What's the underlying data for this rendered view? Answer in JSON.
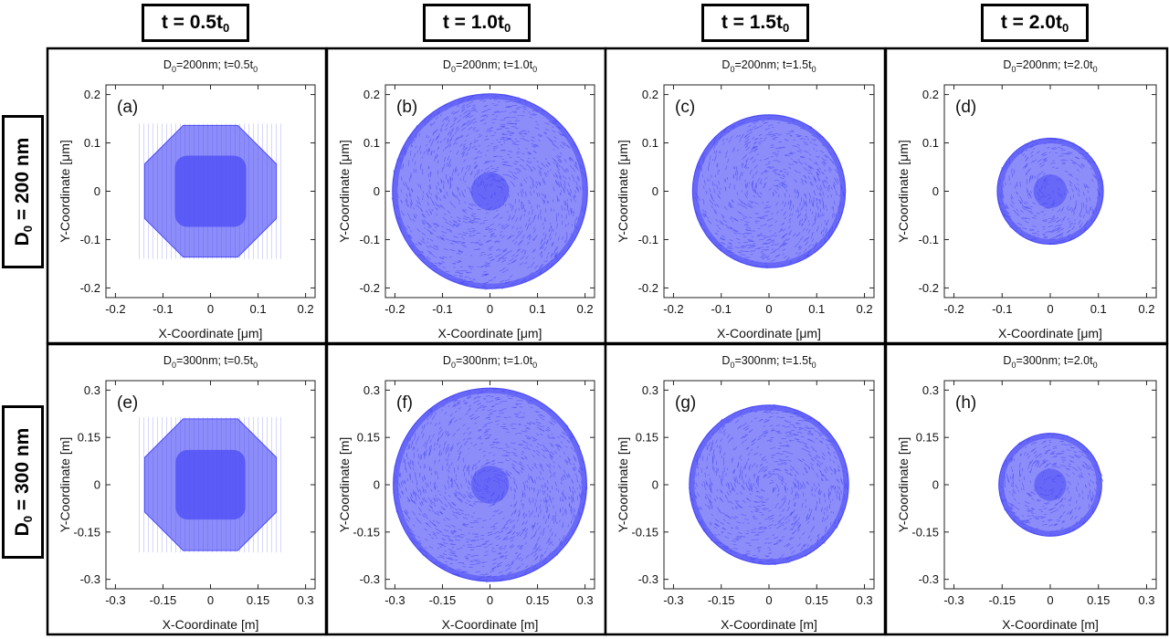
{
  "column_headers": [
    {
      "base": "t = ",
      "num": "0.5t",
      "sub": "0"
    },
    {
      "base": "t = ",
      "num": "1.0t",
      "sub": "0"
    },
    {
      "base": "t = ",
      "num": "1.5t",
      "sub": "0"
    },
    {
      "base": "t = ",
      "num": "2.0t",
      "sub": "0"
    }
  ],
  "row_headers": [
    {
      "pre": "D",
      "sub": "0",
      "post": " = 200 nm"
    },
    {
      "pre": "D",
      "sub": "0",
      "post": " = 300 nm"
    }
  ],
  "colors": {
    "particles": "#4b4bf5",
    "particles_light": "#8d8dfa",
    "frame": "#000000",
    "axis": "#222222"
  },
  "chart_data": [
    {
      "type": "scatter",
      "panel_label": "(a)",
      "title": {
        "d": "D",
        "dsub": "0",
        "dval": "=200nm; t=0.5t",
        "tsub": "0"
      },
      "xlabel": "X-Coordinate [μm]",
      "ylabel": "Y-Coordinate [μm]",
      "xlim": [
        -0.22,
        0.22
      ],
      "ylim": [
        -0.22,
        0.22
      ],
      "ticks": [
        -0.2,
        -0.1,
        0,
        0.1,
        0.2
      ],
      "tick_labels": [
        "-0.2",
        "-0.1",
        "0",
        "0.1",
        "0.2"
      ],
      "cloud": {
        "shape": "octagon",
        "radius": 0.15,
        "core_radius": 0.075
      }
    },
    {
      "type": "scatter",
      "panel_label": "(b)",
      "title": {
        "d": "D",
        "dsub": "0",
        "dval": "=200nm; t=1.0t",
        "tsub": "0"
      },
      "xlabel": "X-Coordinate [μm]",
      "ylabel": "Y-Coordinate [μm]",
      "xlim": [
        -0.22,
        0.22
      ],
      "ylim": [
        -0.22,
        0.22
      ],
      "ticks": [
        -0.2,
        -0.1,
        0,
        0.1,
        0.2
      ],
      "tick_labels": [
        "-0.2",
        "-0.1",
        "0",
        "0.1",
        "0.2"
      ],
      "cloud": {
        "shape": "circle",
        "radius": 0.205,
        "core_radius": 0.04
      }
    },
    {
      "type": "scatter",
      "panel_label": "(c)",
      "title": {
        "d": "D",
        "dsub": "0",
        "dval": "=200nm; t=1.5t",
        "tsub": "0"
      },
      "xlabel": "X-Coordinate [μm]",
      "ylabel": "Y-Coordinate [μm]",
      "xlim": [
        -0.22,
        0.22
      ],
      "ylim": [
        -0.22,
        0.22
      ],
      "ticks": [
        -0.2,
        -0.1,
        0,
        0.1,
        0.2
      ],
      "tick_labels": [
        "-0.2",
        "-0.1",
        "0",
        "0.1",
        "0.2"
      ],
      "cloud": {
        "shape": "circle",
        "radius": 0.16,
        "core_radius": 0
      }
    },
    {
      "type": "scatter",
      "panel_label": "(d)",
      "title": {
        "d": "D",
        "dsub": "0",
        "dval": "=200nm; t=2.0t",
        "tsub": "0"
      },
      "xlabel": "X-Coordinate [μm]",
      "ylabel": "Y-Coordinate [μm]",
      "xlim": [
        -0.22,
        0.22
      ],
      "ylim": [
        -0.22,
        0.22
      ],
      "ticks": [
        -0.2,
        -0.1,
        0,
        0.1,
        0.2
      ],
      "tick_labels": [
        "-0.2",
        "-0.1",
        "0",
        "0.1",
        "0.2"
      ],
      "cloud": {
        "shape": "circle",
        "radius": 0.11,
        "core_radius": 0.035
      }
    },
    {
      "type": "scatter",
      "panel_label": "(e)",
      "title": {
        "d": "D",
        "dsub": "0",
        "dval": "=300nm; t=0.5t",
        "tsub": "0"
      },
      "xlabel": "X-Coordinate [m]",
      "ylabel": "Y-Coordinate [m]",
      "xlim": [
        -0.33,
        0.33
      ],
      "ylim": [
        -0.33,
        0.33
      ],
      "ticks": [
        -0.3,
        -0.15,
        0,
        0.15,
        0.3
      ],
      "tick_labels": [
        "-0.3",
        "-0.15",
        "0",
        "0.15",
        "0.3"
      ],
      "cloud": {
        "shape": "octagon",
        "radius": 0.225,
        "core_radius": 0.11
      }
    },
    {
      "type": "scatter",
      "panel_label": "(f)",
      "title": {
        "d": "D",
        "dsub": "0",
        "dval": "=300nm; t=1.0t",
        "tsub": "0"
      },
      "xlabel": "X-Coordinate [m]",
      "ylabel": "Y-Coordinate [m]",
      "xlim": [
        -0.33,
        0.33
      ],
      "ylim": [
        -0.33,
        0.33
      ],
      "ticks": [
        -0.3,
        -0.15,
        0,
        0.15,
        0.3
      ],
      "tick_labels": [
        "-0.3",
        "-0.15",
        "0",
        "0.15",
        "0.3"
      ],
      "cloud": {
        "shape": "circle",
        "radius": 0.305,
        "core_radius": 0.06
      }
    },
    {
      "type": "scatter",
      "panel_label": "(g)",
      "title": {
        "d": "D",
        "dsub": "0",
        "dval": "=300nm; t=1.5t",
        "tsub": "0"
      },
      "xlabel": "X-Coordinate [m]",
      "ylabel": "Y-Coordinate [m]",
      "xlim": [
        -0.33,
        0.33
      ],
      "ylim": [
        -0.33,
        0.33
      ],
      "ticks": [
        -0.3,
        -0.15,
        0,
        0.15,
        0.3
      ],
      "tick_labels": [
        "-0.3",
        "-0.15",
        "0",
        "0.15",
        "0.3"
      ],
      "cloud": {
        "shape": "circle",
        "radius": 0.25,
        "core_radius": 0
      }
    },
    {
      "type": "scatter",
      "panel_label": "(h)",
      "title": {
        "d": "D",
        "dsub": "0",
        "dval": "=300nm; t=2.0t",
        "tsub": "0"
      },
      "xlabel": "X-Coordinate [m]",
      "ylabel": "Y-Coordinate [m]",
      "xlim": [
        -0.33,
        0.33
      ],
      "ylim": [
        -0.33,
        0.33
      ],
      "ticks": [
        -0.3,
        -0.15,
        0,
        0.15,
        0.3
      ],
      "tick_labels": [
        "-0.3",
        "-0.15",
        "0",
        "0.15",
        "0.3"
      ],
      "cloud": {
        "shape": "circle",
        "radius": 0.16,
        "core_radius": 0.05
      }
    }
  ]
}
